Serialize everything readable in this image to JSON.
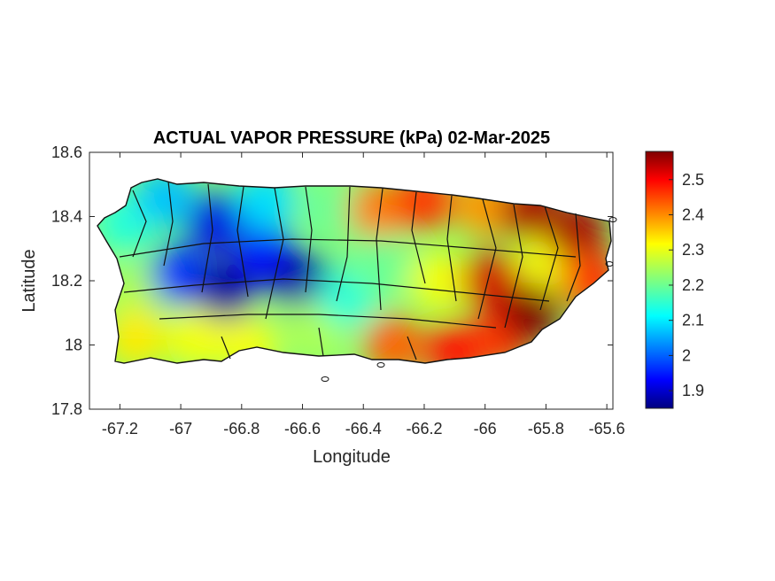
{
  "chart_data": {
    "type": "heatmap",
    "title": "ACTUAL VAPOR PRESSURE (kPa) 02-Mar-2025",
    "xlabel": "Longitude",
    "ylabel": "Latitude",
    "xlim": [
      -67.3,
      -65.58
    ],
    "ylim": [
      17.8,
      18.6
    ],
    "x_ticks": [
      -67.2,
      -67,
      -66.8,
      -66.6,
      -66.4,
      -66.2,
      -66,
      -65.8,
      -65.6
    ],
    "x_tick_labels": [
      "-67.2",
      "-67",
      "-66.8",
      "-66.6",
      "-66.4",
      "-66.2",
      "-66",
      "-65.8",
      "-65.6"
    ],
    "y_ticks": [
      17.8,
      18,
      18.2,
      18.4,
      18.6
    ],
    "y_tick_labels": [
      "17.8",
      "18",
      "18.2",
      "18.4",
      "18.6"
    ],
    "colorbar": {
      "colormap": "jet",
      "range": [
        1.85,
        2.58
      ],
      "ticks": [
        1.9,
        2,
        2.1,
        2.2,
        2.3,
        2.4,
        2.5
      ],
      "tick_labels": [
        "1.9",
        "2",
        "2.1",
        "2.2",
        "2.3",
        "2.4",
        "2.5"
      ]
    },
    "grid": false,
    "field_samples": [
      {
        "lon": -67.18,
        "lat": 18.38,
        "value": 2.15
      },
      {
        "lon": -67.15,
        "lat": 18.15,
        "value": 2.25
      },
      {
        "lon": -67.15,
        "lat": 18.02,
        "value": 2.32
      },
      {
        "lon": -67.05,
        "lat": 18.46,
        "value": 2.08
      },
      {
        "lon": -67.0,
        "lat": 18.22,
        "value": 1.98
      },
      {
        "lon": -66.95,
        "lat": 18.02,
        "value": 2.3
      },
      {
        "lon": -66.88,
        "lat": 18.38,
        "value": 1.92
      },
      {
        "lon": -66.85,
        "lat": 18.17,
        "value": 1.87
      },
      {
        "lon": -66.78,
        "lat": 18.0,
        "value": 2.3
      },
      {
        "lon": -66.72,
        "lat": 18.28,
        "value": 1.95
      },
      {
        "lon": -66.72,
        "lat": 18.45,
        "value": 2.1
      },
      {
        "lon": -66.6,
        "lat": 18.2,
        "value": 1.88
      },
      {
        "lon": -66.55,
        "lat": 18.05,
        "value": 2.25
      },
      {
        "lon": -66.5,
        "lat": 18.42,
        "value": 2.2
      },
      {
        "lon": -66.45,
        "lat": 18.15,
        "value": 2.15
      },
      {
        "lon": -66.35,
        "lat": 18.42,
        "value": 2.4
      },
      {
        "lon": -66.35,
        "lat": 18.25,
        "value": 2.2
      },
      {
        "lon": -66.3,
        "lat": 18.0,
        "value": 2.42
      },
      {
        "lon": -66.2,
        "lat": 18.45,
        "value": 2.45
      },
      {
        "lon": -66.15,
        "lat": 18.2,
        "value": 2.3
      },
      {
        "lon": -66.1,
        "lat": 17.98,
        "value": 2.48
      },
      {
        "lon": -66.0,
        "lat": 18.43,
        "value": 2.38
      },
      {
        "lon": -65.98,
        "lat": 18.2,
        "value": 2.52
      },
      {
        "lon": -65.95,
        "lat": 18.02,
        "value": 2.45
      },
      {
        "lon": -65.85,
        "lat": 18.42,
        "value": 2.55
      },
      {
        "lon": -65.8,
        "lat": 18.25,
        "value": 2.3
      },
      {
        "lon": -65.85,
        "lat": 18.1,
        "value": 2.58
      },
      {
        "lon": -65.7,
        "lat": 18.35,
        "value": 2.55
      },
      {
        "lon": -65.65,
        "lat": 18.2,
        "value": 2.45
      }
    ]
  }
}
